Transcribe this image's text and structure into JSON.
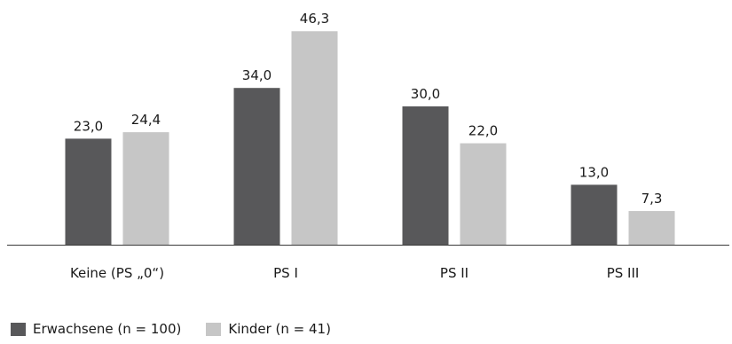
{
  "chart_data": {
    "type": "bar",
    "categories": [
      "Keine (PS „0“)",
      "PS I",
      "PS II",
      "PS III"
    ],
    "series": [
      {
        "name": "Erwachsene (n = 100)",
        "values": [
          "23,0",
          "34,0",
          "30,0",
          "13,0"
        ],
        "color": "#58585a"
      },
      {
        "name": "Kinder (n = 41)",
        "values": [
          "24,4",
          "46,3",
          "22,0",
          "7,3"
        ],
        "color": "#c6c6c6"
      }
    ],
    "ylim": [
      0,
      50
    ],
    "grid": false,
    "legend": "bottom-left"
  }
}
